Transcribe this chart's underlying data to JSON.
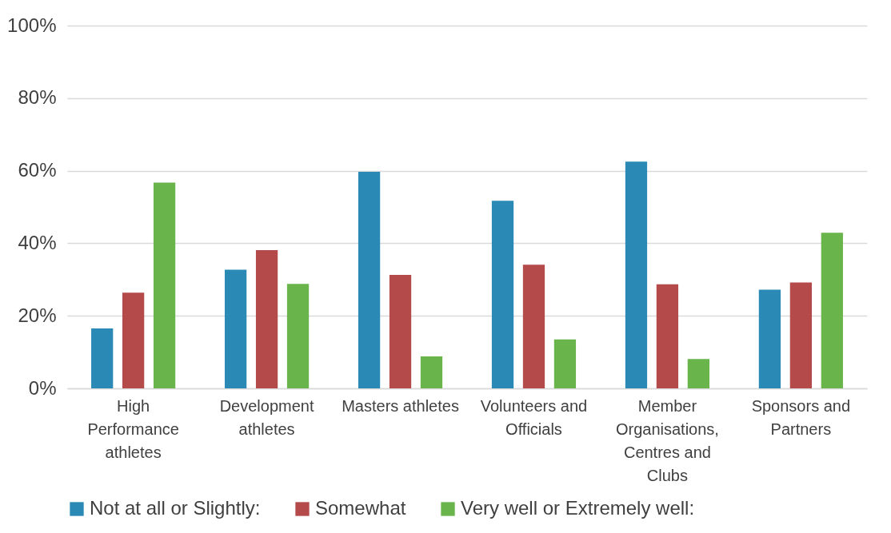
{
  "chart_data": {
    "type": "bar",
    "categories": [
      "High Performance athletes",
      "Development athletes",
      "Masters athletes",
      "Volunteers and Officials",
      "Member Organisations, Centres and Clubs",
      "Sponsors and Partners"
    ],
    "series": [
      {
        "name": "Not at all or Slightly:",
        "color": "#2a89b5",
        "values": [
          16.5,
          32.7,
          59.7,
          51.7,
          62.5,
          27.2
        ]
      },
      {
        "name": "Somewhat",
        "color": "#b54a4a",
        "values": [
          26.4,
          38.1,
          31.3,
          34.1,
          28.7,
          29.2
        ]
      },
      {
        "name": "Very well or Extremely well:",
        "color": "#6ab44c",
        "values": [
          56.7,
          28.8,
          8.8,
          13.5,
          8.1,
          42.9
        ]
      }
    ],
    "ylim": [
      0,
      100
    ],
    "yticks": [
      {
        "value": 0,
        "label": "0%"
      },
      {
        "value": 20,
        "label": "20%"
      },
      {
        "value": 40,
        "label": "40%"
      },
      {
        "value": 60,
        "label": "60%"
      },
      {
        "value": 80,
        "label": "80%"
      },
      {
        "value": 100,
        "label": "100%"
      }
    ],
    "grid": "y",
    "legend": "bottom"
  }
}
